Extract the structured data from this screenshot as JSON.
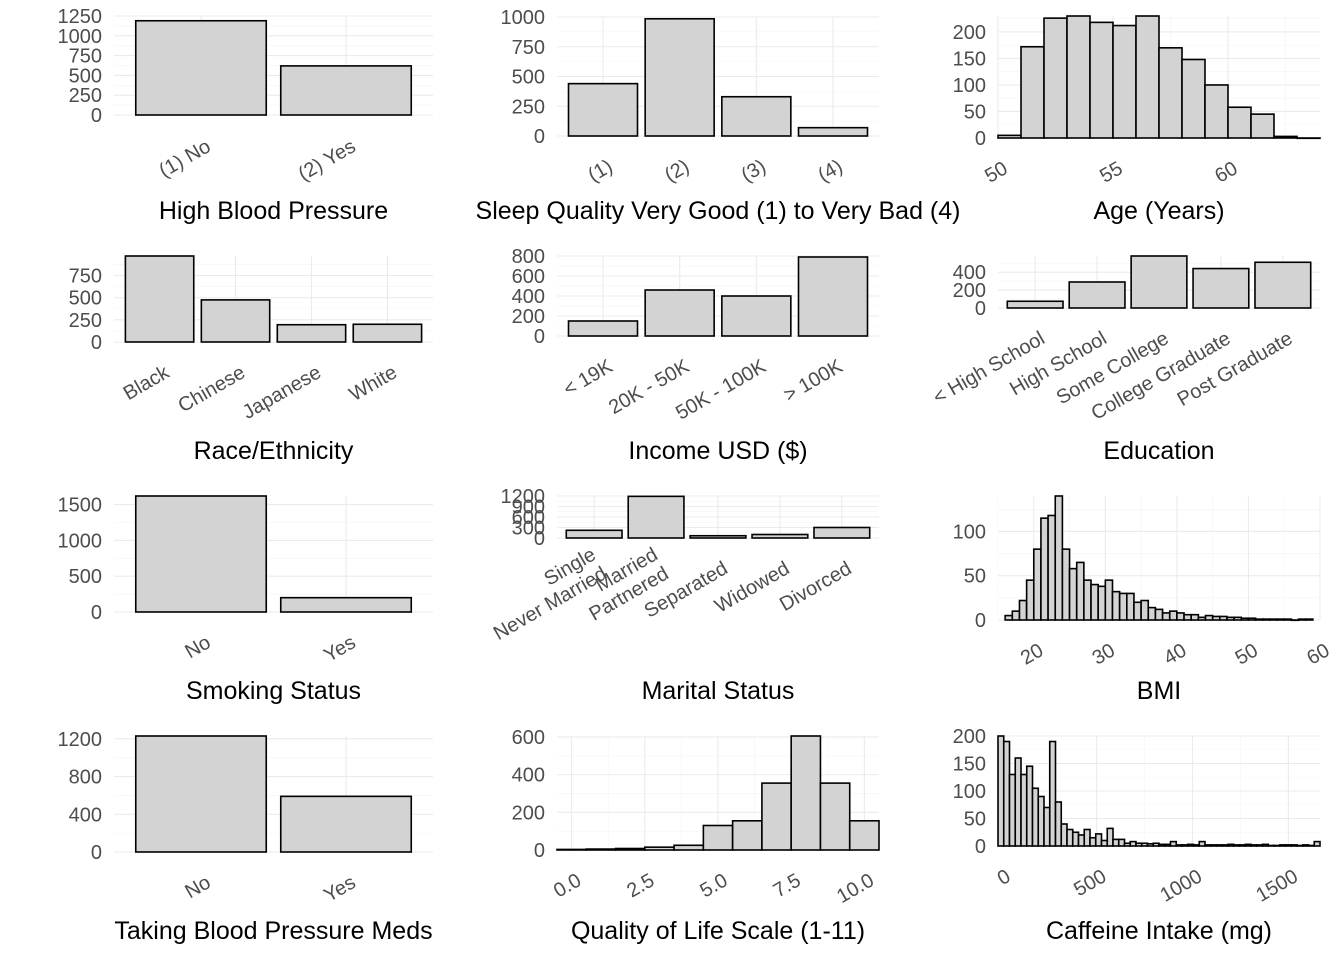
{
  "chart_data": [
    {
      "type": "bar",
      "xlabel": "High Blood Pressure",
      "categories": [
        "(1) No",
        "(2) Yes"
      ],
      "values": [
        1190,
        620
      ],
      "ylim": [
        0,
        1250
      ],
      "yticks": [
        0,
        250,
        500,
        750,
        1000,
        1250
      ],
      "xtick_rotation": 30,
      "grid": true
    },
    {
      "type": "bar",
      "xlabel": "Sleep Quality Very Good (1) to Very Bad (4)",
      "categories": [
        "(1)",
        "(2)",
        "(3)",
        "(4)"
      ],
      "values": [
        440,
        985,
        330,
        70
      ],
      "ylim": [
        0,
        1000
      ],
      "yticks": [
        0,
        250,
        500,
        750,
        1000
      ],
      "xtick_rotation": 30,
      "grid": true
    },
    {
      "type": "histogram",
      "xlabel": "Age (Years)",
      "x": [
        50.5,
        51.5,
        52.5,
        53.5,
        54.5,
        55.5,
        56.5,
        57.5,
        58.5,
        59.5,
        60.5,
        61.5,
        62.5,
        63.5
      ],
      "values": [
        5,
        172,
        226,
        230,
        218,
        212,
        230,
        170,
        148,
        100,
        58,
        45,
        3,
        0
      ],
      "binwidth": 1,
      "xlim": [
        50,
        64
      ],
      "ylim": [
        0,
        230
      ],
      "xticks": [
        50,
        55,
        60
      ],
      "yticks": [
        0,
        50,
        100,
        150,
        200
      ],
      "xtick_rotation": 30,
      "grid": true
    },
    {
      "type": "bar",
      "xlabel": "Race/Ethnicity",
      "categories": [
        "Black",
        "Chinese",
        "Japanese",
        "White"
      ],
      "values": [
        970,
        475,
        195,
        200
      ],
      "ylim": [
        0,
        970
      ],
      "yticks": [
        0,
        250,
        500,
        750
      ],
      "xtick_rotation": 30,
      "grid": true
    },
    {
      "type": "bar",
      "xlabel": "Income USD ($)",
      "categories": [
        "< 19K",
        "20K - 50K",
        "50K - 100K",
        "> 100K"
      ],
      "values": [
        150,
        460,
        400,
        790
      ],
      "ylim": [
        0,
        800
      ],
      "yticks": [
        0,
        200,
        400,
        600,
        800
      ],
      "xtick_rotation": 30,
      "grid": true
    },
    {
      "type": "bar",
      "xlabel": "Education",
      "categories": [
        "< High School",
        "High School",
        "Some College",
        "College Graduate",
        "Post Graduate"
      ],
      "values": [
        75,
        290,
        580,
        440,
        510
      ],
      "ylim": [
        0,
        580
      ],
      "yticks": [
        0,
        200,
        400
      ],
      "xtick_rotation": 30,
      "grid": true
    },
    {
      "type": "bar",
      "xlabel": "Smoking Status",
      "categories": [
        "No",
        "Yes"
      ],
      "values": [
        1620,
        200
      ],
      "ylim": [
        0,
        1620
      ],
      "yticks": [
        0,
        500,
        1000,
        1500
      ],
      "xtick_rotation": 30,
      "grid": true
    },
    {
      "type": "bar",
      "xlabel": "Marital Status",
      "categories": [
        "Single\nNever Married",
        "Married\nPartnered",
        "Separated",
        "Widowed",
        "Divorced"
      ],
      "values": [
        220,
        1190,
        65,
        100,
        300
      ],
      "ylim": [
        0,
        1200
      ],
      "yticks": [
        0,
        300,
        600,
        900,
        1200
      ],
      "xtick_rotation": 30,
      "grid": true
    },
    {
      "type": "histogram",
      "xlabel": "BMI",
      "x": [
        16.5,
        17.5,
        18.5,
        19.5,
        20.5,
        21.5,
        22.5,
        23.5,
        24.5,
        25.5,
        26.5,
        27.5,
        28.5,
        29.5,
        30.5,
        31.5,
        32.5,
        33.5,
        34.5,
        35.5,
        36.5,
        37.5,
        38.5,
        39.5,
        40.5,
        41.5,
        42.5,
        43.5,
        44.5,
        45.5,
        46.5,
        47.5,
        48.5,
        49.5,
        50.5,
        51.5,
        52.5,
        53.5,
        54.5,
        55.5,
        56.5,
        57.5,
        58.5
      ],
      "values": [
        5,
        10,
        22,
        45,
        80,
        115,
        118,
        140,
        80,
        58,
        65,
        45,
        40,
        38,
        45,
        32,
        30,
        30,
        20,
        22,
        14,
        12,
        8,
        10,
        8,
        6,
        6,
        3,
        5,
        4,
        4,
        3,
        3,
        2,
        2,
        1,
        1,
        1,
        1,
        1,
        0,
        1,
        1
      ],
      "binwidth": 1,
      "xlim": [
        15,
        60
      ],
      "ylim": [
        0,
        140
      ],
      "xticks": [
        20,
        30,
        40,
        50,
        60
      ],
      "yticks": [
        0,
        50,
        100
      ],
      "xtick_rotation": 30,
      "grid": true
    },
    {
      "type": "bar",
      "xlabel": "Taking Blood Pressure Meds",
      "categories": [
        "No",
        "Yes"
      ],
      "values": [
        1230,
        590
      ],
      "ylim": [
        0,
        1230
      ],
      "yticks": [
        0,
        400,
        800,
        1200
      ],
      "xtick_rotation": 30,
      "grid": true
    },
    {
      "type": "histogram",
      "xlabel": "Quality of Life Scale (1-11)",
      "x": [
        0,
        1,
        2,
        3,
        4,
        5,
        6,
        7,
        8,
        9,
        10
      ],
      "values": [
        3,
        5,
        8,
        15,
        25,
        130,
        155,
        355,
        605,
        355,
        155
      ],
      "binwidth": 1,
      "xlim": [
        -0.5,
        10.5
      ],
      "ylim": [
        0,
        605
      ],
      "xticks": [
        0,
        2.5,
        5,
        7.5,
        10
      ],
      "xtick_labels": [
        "0.0",
        "2.5",
        "5.0",
        "7.5",
        "10.0"
      ],
      "yticks": [
        0,
        200,
        400,
        600
      ],
      "xtick_rotation": 30,
      "grid": true
    },
    {
      "type": "histogram",
      "xlabel": "Caffeine Intake (mg)",
      "x": [
        0,
        30,
        60,
        90,
        120,
        150,
        180,
        210,
        240,
        270,
        300,
        330,
        360,
        390,
        420,
        450,
        480,
        510,
        540,
        570,
        600,
        630,
        660,
        690,
        720,
        750,
        780,
        810,
        840,
        870,
        900,
        930,
        960,
        990,
        1020,
        1050,
        1080,
        1110,
        1140,
        1170,
        1200,
        1230,
        1260,
        1290,
        1320,
        1350,
        1380,
        1410,
        1440,
        1470,
        1500,
        1530,
        1560,
        1590,
        1620,
        1650
      ],
      "values": [
        200,
        190,
        130,
        160,
        130,
        145,
        105,
        90,
        70,
        190,
        80,
        40,
        30,
        25,
        20,
        30,
        15,
        22,
        10,
        32,
        12,
        12,
        5,
        8,
        5,
        5,
        4,
        5,
        3,
        3,
        8,
        2,
        2,
        3,
        2,
        8,
        2,
        2,
        2,
        2,
        3,
        2,
        2,
        3,
        2,
        2,
        3,
        1,
        1,
        2,
        2,
        2,
        1,
        2,
        1,
        8
      ],
      "binwidth": 30,
      "xlim": [
        -15,
        1665
      ],
      "ylim": [
        0,
        200
      ],
      "xticks": [
        0,
        500,
        1000,
        1500
      ],
      "yticks": [
        0,
        50,
        100,
        150,
        200
      ],
      "xtick_rotation": 30,
      "grid": true
    }
  ]
}
